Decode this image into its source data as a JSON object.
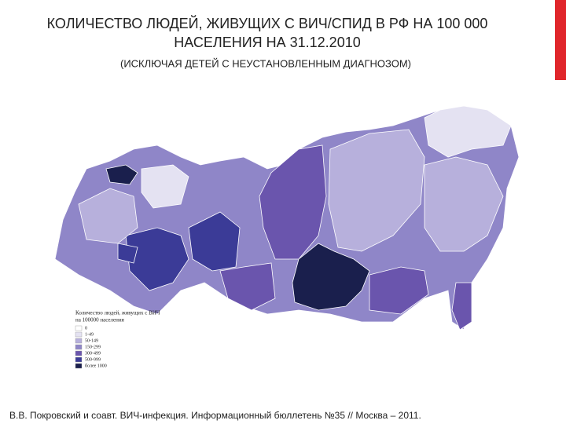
{
  "header": {
    "title_lines": [
      "КОЛИЧЕСТВО ЛЮДЕЙ, ЖИВУЩИХ С ВИЧ/СПИД В РФ НА 100 000",
      "НАСЕЛЕНИЯ НА 31.12.2010"
    ],
    "subtitle": "(ИСКЛЮЧАЯ ДЕТЕЙ С НЕУСТАНОВЛЕННЫМ ДИАГНОЗОМ)"
  },
  "map": {
    "legend": {
      "title_lines": [
        "Количество людей, живущих с ВИЧ",
        "на 100000 населения"
      ],
      "items": [
        {
          "label": "0",
          "color": "#ffffff"
        },
        {
          "label": "1-49",
          "color": "#e4e2f2"
        },
        {
          "label": "50-149",
          "color": "#b7b0dc"
        },
        {
          "label": "150-299",
          "color": "#8f86c8"
        },
        {
          "label": "300-499",
          "color": "#6a55ad"
        },
        {
          "label": "500-999",
          "color": "#3b3b97"
        },
        {
          "label": "более 1000",
          "color": "#1a1f4d"
        }
      ]
    }
  },
  "footer": {
    "citation": "В.В. Покровский и соавт. ВИЧ-инфекция. Информационный бюллетень №35 // Москва – 2011."
  }
}
